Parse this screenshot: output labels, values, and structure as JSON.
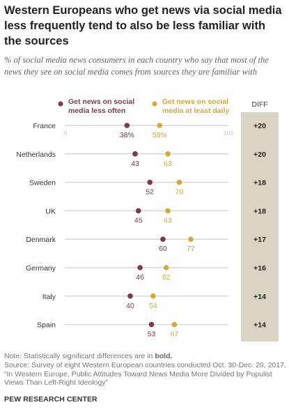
{
  "title": "Western Europeans who get news via social media less frequently tend to also be less familiar with the sources",
  "subtitle": "% of social media news consumers in each country who say that most of the news they see on social media comes from sources they are familiar with",
  "colors": {
    "less_often": "#7b3b4b",
    "daily": "#d9a73a",
    "diff_bg": "#d9d4c3",
    "axis": "#d6d6d6"
  },
  "chart_data": {
    "type": "scatter",
    "categories": [
      "France",
      "Netherlands",
      "Sweden",
      "UK",
      "Denmark",
      "Germany",
      "Italy",
      "Spain"
    ],
    "xlim": [
      0,
      100
    ],
    "tick_labels": [
      "0",
      "100"
    ],
    "series": [
      {
        "name": "Get news on social media less often",
        "values": [
          38,
          43,
          52,
          45,
          60,
          46,
          40,
          53
        ]
      },
      {
        "name": "Get news on social media at least daily",
        "values": [
          58,
          63,
          70,
          63,
          77,
          62,
          54,
          67
        ]
      }
    ],
    "value_labels": {
      "less_often": [
        "38%",
        "43",
        "52",
        "45",
        "60",
        "46",
        "40",
        "53"
      ],
      "daily": [
        "58%",
        "63",
        "70",
        "63",
        "77",
        "62",
        "54",
        "67"
      ]
    },
    "diff_header": "DIFF",
    "diff": [
      "+20",
      "+20",
      "+18",
      "+18",
      "+17",
      "+16",
      "+14",
      "+14"
    ],
    "grid": false,
    "legend": "top"
  },
  "notes": {
    "note_prefix": "Note: Statistically significant differences are in ",
    "note_bold": "bold.",
    "source": "Source: Survey of eight Western European countries conducted Oct. 30-Dec. 20, 2017.",
    "report": "“In Western Europe, Public Attitudes Toward News Media More Divided by Populist Views Than Left-Right Ideology”"
  },
  "org": "PEW RESEARCH CENTER"
}
